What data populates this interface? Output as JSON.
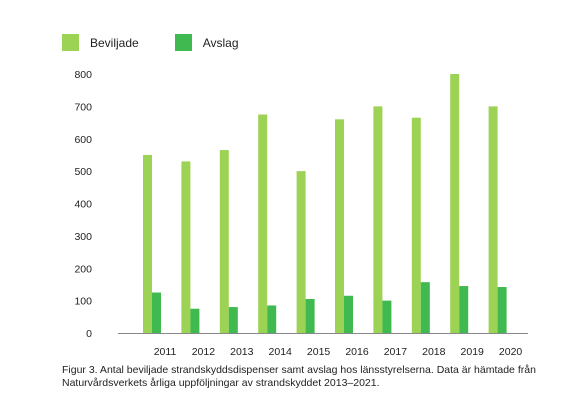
{
  "chart_data": {
    "type": "bar",
    "categories": [
      "2011",
      "2012",
      "2013",
      "2014",
      "2015",
      "2016",
      "2017",
      "2018",
      "2019",
      "2020"
    ],
    "series": [
      {
        "name": "Beviljade",
        "color": "#9dd354",
        "values": [
          550,
          530,
          565,
          675,
          500,
          660,
          700,
          665,
          800,
          700
        ]
      },
      {
        "name": "Avslag",
        "color": "#3fb950",
        "values": [
          125,
          75,
          80,
          85,
          105,
          115,
          100,
          157,
          145,
          142
        ]
      }
    ],
    "yticks": [
      0,
      100,
      200,
      300,
      400,
      500,
      600,
      700,
      800
    ],
    "ylim": [
      0,
      800
    ],
    "grid": false,
    "legend_position": "top-left"
  },
  "caption": "Figur 3. Antal beviljade strandskyddsdispenser samt avslag hos länsstyrelserna. Data är hämtade från Naturvårdsverkets årliga uppföljningar av strandskyddet 2013–2021."
}
